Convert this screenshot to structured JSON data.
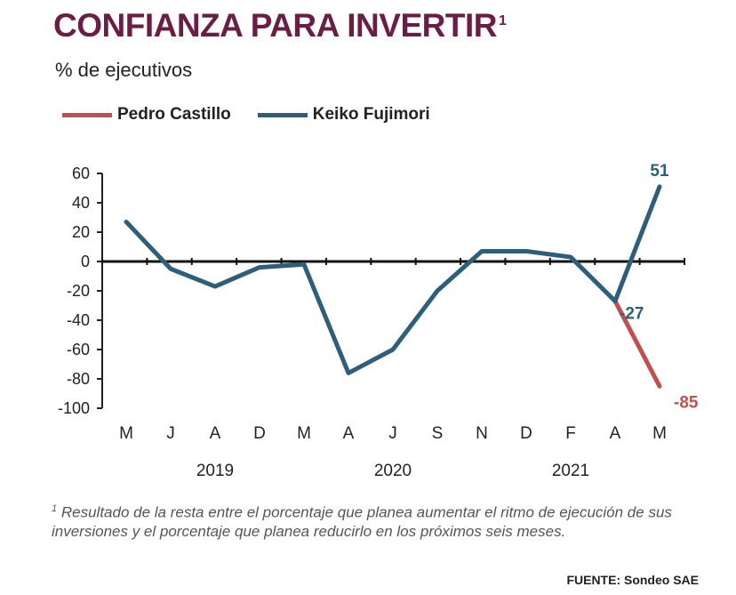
{
  "header": {
    "title": "CONFIANZA PARA INVERTIR",
    "title_sup": "1",
    "subtitle": "% de ejecutivos"
  },
  "footnote": {
    "marker": "1",
    "text": "Resultado de la resta entre el porcentaje que planea aumentar el ritmo de ejecución de sus inversiones y el porcentaje que planea reducirlo en los próximos seis meses."
  },
  "source": "FUENTE: Sondeo SAE",
  "chart_data": {
    "type": "line",
    "x": [
      "M",
      "J",
      "A",
      "D",
      "M",
      "A",
      "J",
      "S",
      "N",
      "D",
      "F",
      "A",
      "M"
    ],
    "year_labels": [
      {
        "label": "2019",
        "at_index": 2
      },
      {
        "label": "2020",
        "at_index": 6
      },
      {
        "label": "2021",
        "at_index": 10
      }
    ],
    "ylim": [
      -100,
      60
    ],
    "yticks": [
      60,
      40,
      20,
      0,
      -20,
      -40,
      -60,
      -80,
      -100
    ],
    "legend_position": "top-left",
    "series": [
      {
        "name": "Pedro Castillo",
        "color": "#c0504d",
        "values": [
          null,
          null,
          null,
          null,
          null,
          null,
          null,
          null,
          null,
          null,
          null,
          -27,
          -85
        ]
      },
      {
        "name": "Keiko Fujimori",
        "color": "#2e5f7a",
        "values": [
          27,
          -5,
          -17,
          -4,
          -2,
          -76,
          -60,
          -20,
          7,
          7,
          3,
          -27,
          51
        ]
      }
    ],
    "annotations": [
      {
        "text": "51",
        "series": 1,
        "index": 12,
        "color": "#2e5f7a"
      },
      {
        "text": "-27",
        "series": 1,
        "index": 11,
        "color": "#2e5f7a"
      },
      {
        "text": "-85",
        "series": 0,
        "index": 12,
        "color": "#c0504d"
      }
    ]
  }
}
